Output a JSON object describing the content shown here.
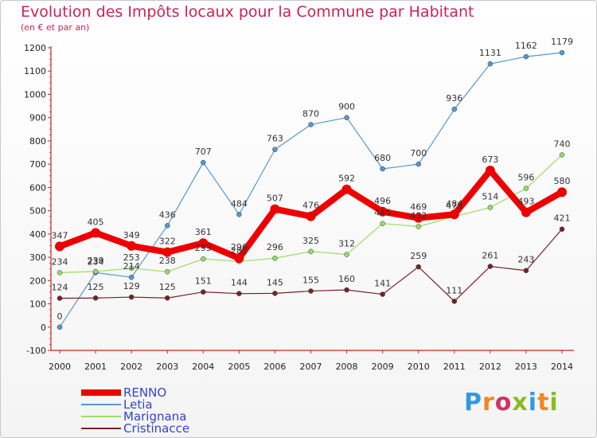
{
  "title": "Evolution des Impôts locaux pour la Commune par Habitant",
  "subtitle": "(en € et par an)",
  "logo": {
    "text": "Proxiti",
    "letters": [
      {
        "ch": "P",
        "color": "#3399dd"
      },
      {
        "ch": "r",
        "color": "#ee8822"
      },
      {
        "ch": "o",
        "color": "#cc3366"
      },
      {
        "ch": "x",
        "color": "#88bb22"
      },
      {
        "ch": "i",
        "color": "#3399dd"
      },
      {
        "ch": "t",
        "color": "#ee8822"
      },
      {
        "ch": "i",
        "color": "#88bb22"
      }
    ]
  },
  "chart_data": {
    "type": "line",
    "x": [
      2000,
      2001,
      2002,
      2003,
      2004,
      2005,
      2006,
      2007,
      2008,
      2009,
      2010,
      2011,
      2012,
      2013,
      2014
    ],
    "ylim": [
      -100,
      1200
    ],
    "yticks": [
      -100,
      0,
      100,
      200,
      300,
      400,
      500,
      600,
      700,
      800,
      900,
      1000,
      1100,
      1200
    ],
    "grid": false,
    "legend_position": "bottom-left",
    "series": [
      {
        "name": "RENNO",
        "color": "#ee0000",
        "width": 8,
        "marker": 6,
        "values": [
          347,
          405,
          349,
          322,
          361,
          296,
          507,
          476,
          592,
          496,
          469,
          484,
          673,
          493,
          580
        ]
      },
      {
        "name": "Letia",
        "color": "#5599cc",
        "width": 1.2,
        "marker": 3,
        "values": [
          0,
          234,
          214,
          436,
          707,
          484,
          763,
          870,
          900,
          680,
          700,
          936,
          1131,
          1162,
          1179
        ]
      },
      {
        "name": "Marignana",
        "color": "#99dd66",
        "width": 1.2,
        "marker": 3,
        "values": [
          234,
          239,
          253,
          238,
          293,
          282,
          296,
          325,
          312,
          445,
          432,
          475,
          514,
          596,
          740
        ]
      },
      {
        "name": "Cristinacce",
        "color": "#772222",
        "width": 1.2,
        "marker": 3,
        "values": [
          124,
          125,
          129,
          125,
          151,
          144,
          145,
          155,
          160,
          141,
          259,
          111,
          261,
          243,
          421
        ]
      }
    ]
  }
}
